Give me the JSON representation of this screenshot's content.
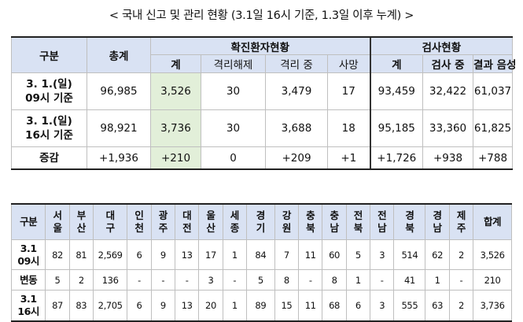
{
  "title": "< 국내 신고 및 관리 현황 (3.1일 16시 기준, 1.3일 이후 누계) >",
  "table1": {
    "headers": {
      "gubun": "구분",
      "total": "총계",
      "confirmed_group": "확진환자현황",
      "test_group": "검사현황",
      "confirmed_sub": [
        "계",
        "격리해제",
        "격리 중",
        "사망"
      ],
      "test_sub": [
        "계",
        "검사 중",
        "결과 음성"
      ]
    },
    "rows": [
      {
        "label_line1": "3. 1.(일)",
        "label_line2": "09시 기준",
        "total": "96,985",
        "confirmed": [
          "3,526",
          "30",
          "3,479",
          "17"
        ],
        "test": [
          "93,459",
          "32,422",
          "61,037"
        ]
      },
      {
        "label_line1": "3. 1.(일)",
        "label_line2": "16시 기준",
        "total": "98,921",
        "confirmed": [
          "3,736",
          "30",
          "3,688",
          "18"
        ],
        "test": [
          "95,185",
          "33,360",
          "61,825"
        ]
      },
      {
        "label_line1": "증감",
        "label_line2": "",
        "total": "+1,936",
        "confirmed": [
          "+210",
          "0",
          "+209",
          "+1"
        ],
        "test": [
          "+1,726",
          "+938",
          "+788"
        ]
      }
    ]
  },
  "table2": {
    "headers": [
      [
        "구분",
        ""
      ],
      [
        "서",
        "울"
      ],
      [
        "부",
        "산"
      ],
      [
        "대",
        "구"
      ],
      [
        "인",
        "천"
      ],
      [
        "광",
        "주"
      ],
      [
        "대",
        "전"
      ],
      [
        "울",
        "산"
      ],
      [
        "세",
        "종"
      ],
      [
        "경",
        "기"
      ],
      [
        "강",
        "원"
      ],
      [
        "충",
        "북"
      ],
      [
        "충",
        "남"
      ],
      [
        "전",
        "북"
      ],
      [
        "전",
        "남"
      ],
      [
        "경",
        "북"
      ],
      [
        "경",
        "남"
      ],
      [
        "제",
        "주"
      ],
      [
        "합계",
        ""
      ]
    ],
    "rows": [
      {
        "label_line1": "3.1",
        "label_line2": "09시",
        "values": [
          "82",
          "81",
          "2,569",
          "6",
          "9",
          "13",
          "17",
          "1",
          "84",
          "7",
          "11",
          "60",
          "5",
          "3",
          "514",
          "62",
          "2",
          "3,526"
        ]
      },
      {
        "label_line1": "변동",
        "label_line2": "",
        "values": [
          "5",
          "2",
          "136",
          "-",
          "-",
          "-",
          "3",
          "-",
          "5",
          "8",
          "-",
          "8",
          "1",
          "-",
          "41",
          "1",
          "-",
          "210"
        ]
      },
      {
        "label_line1": "3.1",
        "label_line2": "16시",
        "values": [
          "87",
          "83",
          "2,705",
          "6",
          "9",
          "13",
          "20",
          "1",
          "89",
          "15",
          "11",
          "68",
          "6",
          "3",
          "555",
          "63",
          "2",
          "3,736"
        ]
      }
    ]
  },
  "colors": {
    "header_bg": "#d9e2f3",
    "highlight_bg": "#e2efd9",
    "border": "#bfbfbf"
  }
}
